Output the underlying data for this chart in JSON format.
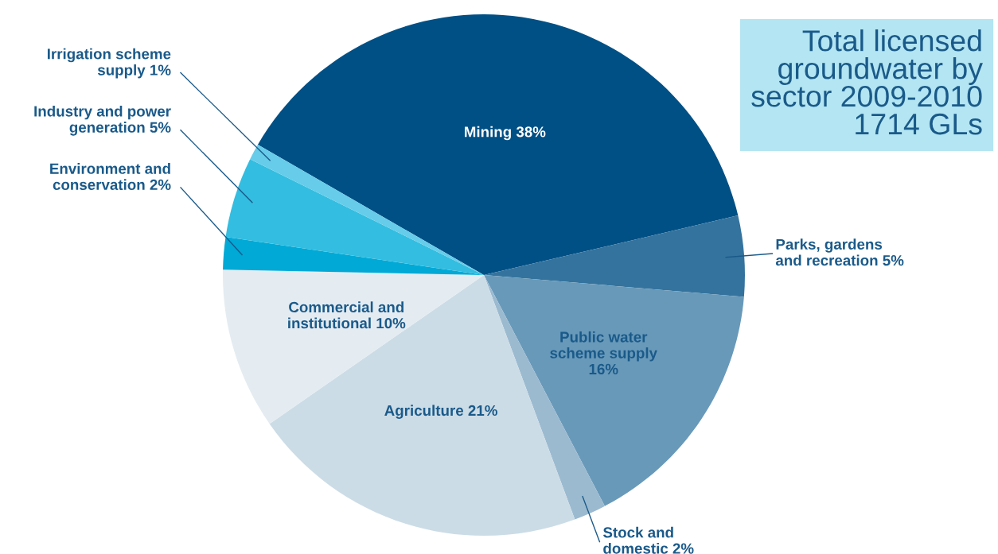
{
  "chart_data": {
    "type": "pie",
    "title": "Total licensed\ngroundwater by\nsector 2009-2010\n1714 GLs",
    "categories": [
      "Mining 38%",
      "Parks, gardens\nand recreation 5%",
      "Public water\nscheme supply\n16%",
      "Stock and\ndomestic 2%",
      "Agriculture 21%",
      "Commercial and\ninstitutional 10%",
      "Environment and\nconservation 2%",
      "Industry and power\ngeneration 5%",
      "Irrigation scheme\nsupply 1%"
    ],
    "values": [
      38,
      5,
      16,
      2,
      21,
      10,
      2,
      5,
      1
    ],
    "colors": [
      "#005085",
      "#34739e",
      "#6899b9",
      "#9bbad0",
      "#ccdce6",
      "#e4ecf2",
      "#00a9d6",
      "#33bde0",
      "#66cce9"
    ],
    "legend": false
  }
}
